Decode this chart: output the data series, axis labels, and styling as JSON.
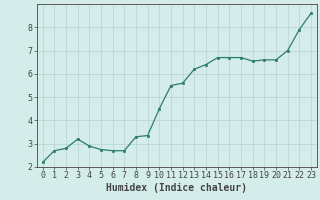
{
  "x": [
    0,
    1,
    2,
    3,
    4,
    5,
    6,
    7,
    8,
    9,
    10,
    11,
    12,
    13,
    14,
    15,
    16,
    17,
    18,
    19,
    20,
    21,
    22,
    23
  ],
  "y": [
    2.2,
    2.7,
    2.8,
    3.2,
    2.9,
    2.75,
    2.7,
    2.7,
    3.3,
    3.35,
    4.5,
    5.5,
    5.6,
    6.2,
    6.4,
    6.7,
    6.7,
    6.7,
    6.55,
    6.6,
    6.6,
    7.0,
    7.9,
    8.6
  ],
  "xlabel": "Humidex (Indice chaleur)",
  "ylim": [
    2,
    9
  ],
  "xlim": [
    -0.5,
    23.5
  ],
  "line_color": "#2d7d6b",
  "bg_color": "#d4ecea",
  "grid_color": "#b8d4d0",
  "axis_color": "#444444",
  "xlabel_fontsize": 7,
  "tick_fontsize": 6,
  "yticks": [
    2,
    3,
    4,
    5,
    6,
    7,
    8
  ],
  "xticks": [
    0,
    1,
    2,
    3,
    4,
    5,
    6,
    7,
    8,
    9,
    10,
    11,
    12,
    13,
    14,
    15,
    16,
    17,
    18,
    19,
    20,
    21,
    22,
    23
  ]
}
